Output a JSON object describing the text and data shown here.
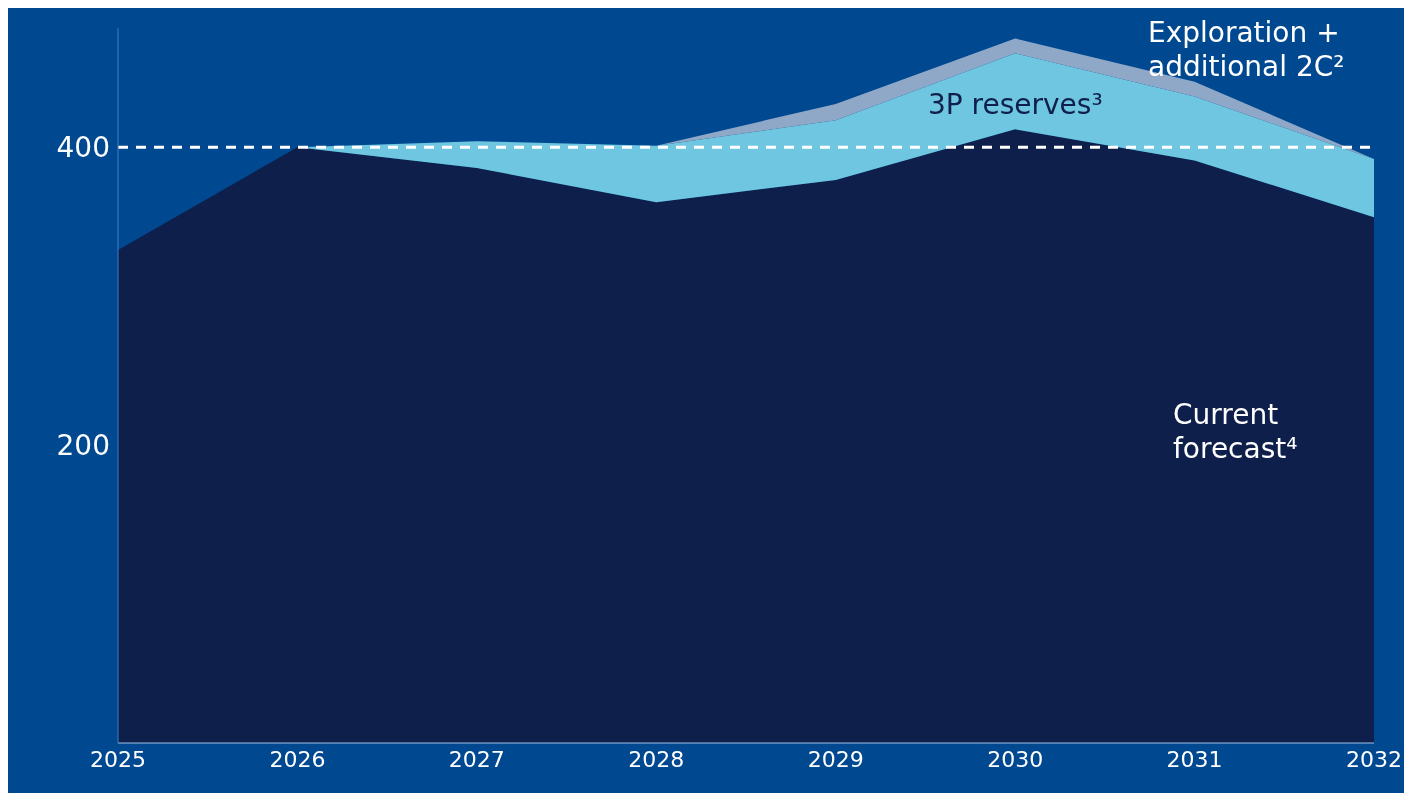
{
  "chart_data": {
    "type": "area",
    "stacked": true,
    "x": [
      2025,
      2026,
      2027,
      2028,
      2029,
      2030,
      2031,
      2032
    ],
    "series": [
      {
        "name": "Current forecast⁴",
        "color": "#0f1f4b",
        "values": [
          331,
          400,
          386,
          363,
          378,
          412,
          391,
          353
        ]
      },
      {
        "name": "3P reserves³",
        "color": "#6ec6e0",
        "values": [
          0,
          0,
          18,
          38,
          40,
          51,
          43,
          39
        ]
      },
      {
        "name": "Exploration + additional 2C²",
        "color": "#8fa8c8",
        "values": [
          0,
          0,
          0,
          0,
          11,
          10,
          10,
          0
        ]
      }
    ],
    "xlim": [
      2025,
      2032
    ],
    "xticks": [
      2025,
      2026,
      2027,
      2028,
      2029,
      2030,
      2031,
      2032
    ],
    "ylim": [
      0,
      480
    ],
    "yticks": [
      200,
      400
    ],
    "ref_lines": [
      {
        "axis": "y",
        "value": 400,
        "color": "#ffffff",
        "line_style": "dashed"
      }
    ],
    "grid": false
  }
}
